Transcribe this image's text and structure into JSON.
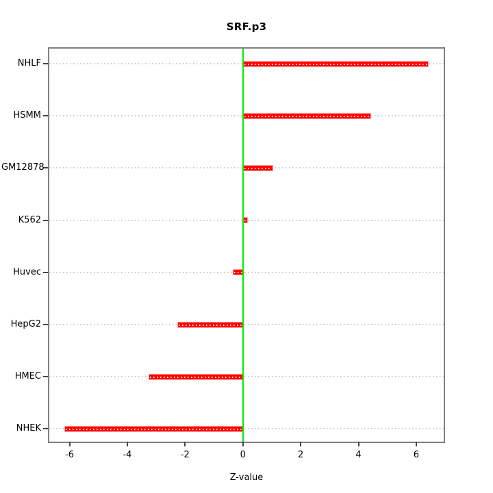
{
  "chart_data": {
    "type": "bar",
    "orientation": "horizontal",
    "title": "SRF.p3",
    "xlabel": "Z-value",
    "ylabel": "",
    "categories": [
      "NHLF",
      "HSMM",
      "GM12878",
      "K562",
      "Huvec",
      "HepG2",
      "HMEC",
      "NHEK"
    ],
    "values": [
      6.42,
      4.44,
      1.04,
      0.17,
      -0.35,
      -2.27,
      -3.26,
      -6.18
    ],
    "xlim": [
      -6.7,
      6.95
    ],
    "x_ticks": [
      -6,
      -4,
      -2,
      0,
      2,
      4,
      6
    ],
    "zero_line_x": 0,
    "grid": "dotted-horizontal",
    "legend": null,
    "colors": {
      "bar": "#ff0000",
      "bar_border": "#ffaaaa",
      "zero_line": "#00ee00",
      "frame": "#7f7f7f",
      "gridline": "#c9c9c9",
      "tick": "#454545",
      "text": "#000000",
      "background": "#ffffff"
    }
  }
}
